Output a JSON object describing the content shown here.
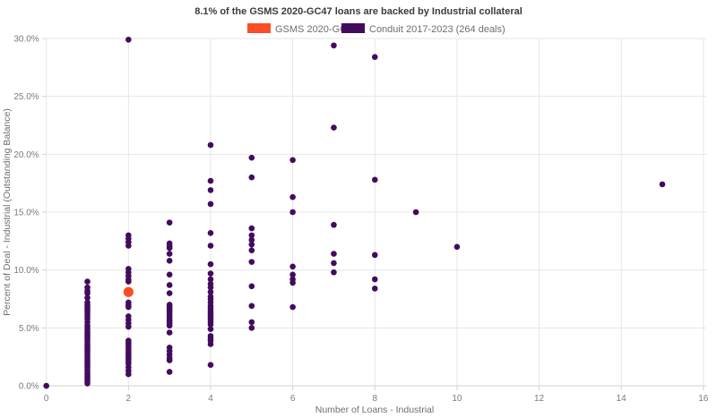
{
  "figure": {
    "title": "8.1% of the GSMS 2020-GC47 loans are backed by Industrial collateral"
  },
  "chart_data": {
    "type": "scatter",
    "title": "8.1% of the GSMS 2020-GC47 loans are backed by Industrial collateral",
    "xlabel": "Number of Loans - Industrial",
    "ylabel": "Percent of Deal - Industrial (Outstanding Balance)",
    "xlim": [
      0,
      16
    ],
    "ylim": [
      0,
      30
    ],
    "x_ticks": [
      0,
      2,
      4,
      6,
      8,
      10,
      12,
      14,
      16
    ],
    "x_tick_labels": [
      "0",
      "2",
      "4",
      "6",
      "8",
      "10",
      "12",
      "14",
      "16"
    ],
    "y_ticks": [
      0,
      5,
      10,
      15,
      20,
      25,
      30
    ],
    "y_tick_labels": [
      "0.0%",
      "5.0%",
      "10.0%",
      "15.0%",
      "20.0%",
      "25.0%",
      "30.0%"
    ],
    "grid": true,
    "legend_position": "top-center",
    "colors": {
      "gsms": "#fb4e24",
      "conduit": "#430b5e",
      "gridline": "#e6e6e6",
      "axis_line": "#d2d2d2",
      "tick_text": "#7a7a7a",
      "title_text": "#3b3b3b"
    },
    "series": [
      {
        "name": "GSMS 2020-GC47",
        "color": "#fb4e24",
        "marker_size": 5.6,
        "points": [
          [
            2,
            8.1
          ]
        ]
      },
      {
        "name": "Conduit 2017-2023 (264 deals)",
        "color": "#430b5e",
        "marker_size": 3.3,
        "points": [
          [
            0,
            0.0
          ],
          [
            1,
            9.0
          ],
          [
            1,
            8.5
          ],
          [
            1,
            8.2
          ],
          [
            1,
            8.0
          ],
          [
            1,
            7.6
          ],
          [
            1,
            7.2
          ],
          [
            1,
            7.0
          ],
          [
            1,
            6.8
          ],
          [
            1,
            6.6
          ],
          [
            1,
            6.4
          ],
          [
            1,
            6.2
          ],
          [
            1,
            6.0
          ],
          [
            1,
            5.8
          ],
          [
            1,
            5.5
          ],
          [
            1,
            5.2
          ],
          [
            1,
            5.0
          ],
          [
            1,
            4.8
          ],
          [
            1,
            4.6
          ],
          [
            1,
            4.4
          ],
          [
            1,
            4.2
          ],
          [
            1,
            4.0
          ],
          [
            1,
            3.8
          ],
          [
            1,
            3.6
          ],
          [
            1,
            3.4
          ],
          [
            1,
            3.2
          ],
          [
            1,
            3.0
          ],
          [
            1,
            2.8
          ],
          [
            1,
            2.6
          ],
          [
            1,
            2.4
          ],
          [
            1,
            2.2
          ],
          [
            1,
            2.0
          ],
          [
            1,
            1.8
          ],
          [
            1,
            1.6
          ],
          [
            1,
            1.4
          ],
          [
            1,
            1.2
          ],
          [
            1,
            1.0
          ],
          [
            1,
            0.8
          ],
          [
            1,
            0.6
          ],
          [
            1,
            0.4
          ],
          [
            1,
            0.2
          ],
          [
            2,
            29.9
          ],
          [
            2,
            13.0
          ],
          [
            2,
            12.7
          ],
          [
            2,
            12.4
          ],
          [
            2,
            12.1
          ],
          [
            2,
            10.1
          ],
          [
            2,
            9.8
          ],
          [
            2,
            9.5
          ],
          [
            2,
            9.2
          ],
          [
            2,
            9.0
          ],
          [
            2,
            7.2
          ],
          [
            2,
            7.0
          ],
          [
            2,
            6.8
          ],
          [
            2,
            6.0
          ],
          [
            2,
            5.7
          ],
          [
            2,
            5.4
          ],
          [
            2,
            5.1
          ],
          [
            2,
            3.9
          ],
          [
            2,
            3.7
          ],
          [
            2,
            3.5
          ],
          [
            2,
            3.3
          ],
          [
            2,
            3.1
          ],
          [
            2,
            2.9
          ],
          [
            2,
            2.7
          ],
          [
            2,
            2.5
          ],
          [
            2,
            2.3
          ],
          [
            2,
            2.1
          ],
          [
            2,
            1.9
          ],
          [
            2,
            1.6
          ],
          [
            2,
            1.3
          ],
          [
            2,
            1.0
          ],
          [
            3,
            14.1
          ],
          [
            3,
            12.3
          ],
          [
            3,
            12.1
          ],
          [
            3,
            11.9
          ],
          [
            3,
            11.4
          ],
          [
            3,
            10.8
          ],
          [
            3,
            9.6
          ],
          [
            3,
            8.7
          ],
          [
            3,
            8.0
          ],
          [
            3,
            7.0
          ],
          [
            3,
            6.8
          ],
          [
            3,
            6.6
          ],
          [
            3,
            6.4
          ],
          [
            3,
            6.2
          ],
          [
            3,
            6.0
          ],
          [
            3,
            5.8
          ],
          [
            3,
            5.6
          ],
          [
            3,
            5.4
          ],
          [
            3,
            5.2
          ],
          [
            3,
            4.6
          ],
          [
            3,
            3.3
          ],
          [
            3,
            3.0
          ],
          [
            3,
            2.7
          ],
          [
            3,
            2.4
          ],
          [
            3,
            2.2
          ],
          [
            3,
            1.2
          ],
          [
            4,
            20.8
          ],
          [
            4,
            17.7
          ],
          [
            4,
            16.9
          ],
          [
            4,
            15.7
          ],
          [
            4,
            13.2
          ],
          [
            4,
            12.1
          ],
          [
            4,
            10.5
          ],
          [
            4,
            9.7
          ],
          [
            4,
            9.2
          ],
          [
            4,
            8.8
          ],
          [
            4,
            8.5
          ],
          [
            4,
            8.1
          ],
          [
            4,
            7.7
          ],
          [
            4,
            7.5
          ],
          [
            4,
            7.2
          ],
          [
            4,
            6.9
          ],
          [
            4,
            6.7
          ],
          [
            4,
            6.5
          ],
          [
            4,
            6.3
          ],
          [
            4,
            6.1
          ],
          [
            4,
            5.9
          ],
          [
            4,
            5.7
          ],
          [
            4,
            5.5
          ],
          [
            4,
            5.3
          ],
          [
            4,
            4.9
          ],
          [
            4,
            4.3
          ],
          [
            4,
            4.1
          ],
          [
            4,
            3.9
          ],
          [
            4,
            3.6
          ],
          [
            4,
            1.8
          ],
          [
            5,
            19.7
          ],
          [
            5,
            18.0
          ],
          [
            5,
            13.6
          ],
          [
            5,
            13.0
          ],
          [
            5,
            12.6
          ],
          [
            5,
            12.2
          ],
          [
            5,
            11.7
          ],
          [
            5,
            10.7
          ],
          [
            5,
            8.6
          ],
          [
            5,
            6.9
          ],
          [
            5,
            5.5
          ],
          [
            5,
            5.0
          ],
          [
            6,
            19.5
          ],
          [
            6,
            16.3
          ],
          [
            6,
            15.0
          ],
          [
            6,
            10.3
          ],
          [
            6,
            9.6
          ],
          [
            6,
            9.2
          ],
          [
            6,
            8.9
          ],
          [
            6,
            6.8
          ],
          [
            7,
            29.4
          ],
          [
            7,
            22.3
          ],
          [
            7,
            13.9
          ],
          [
            7,
            11.4
          ],
          [
            7,
            10.6
          ],
          [
            7,
            9.8
          ],
          [
            8,
            28.4
          ],
          [
            8,
            17.8
          ],
          [
            8,
            11.3
          ],
          [
            8,
            9.2
          ],
          [
            8,
            8.4
          ],
          [
            9,
            15.0
          ],
          [
            10,
            12.0
          ],
          [
            15,
            17.4
          ]
        ]
      }
    ]
  }
}
